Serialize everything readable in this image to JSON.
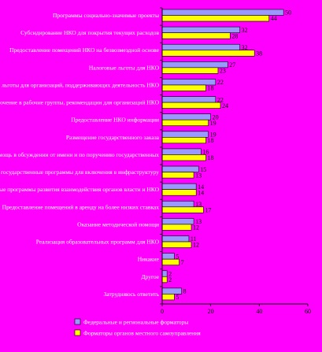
{
  "chart_data": {
    "type": "bar",
    "orientation": "horizontal",
    "categories": [
      "Программы социально-значимые проекты",
      "Субсидирование НКО для покрытия текущих расходов",
      "Предоставление помещений НКО на безвозмездной основе",
      "Налоговые льготы для НКО",
      "Налоговые льготы для организаций, поддерживающих деятельность НКО",
      "Включение в рабочие группы, рекомендации для организаций НКО",
      "Предоставление НКО информации",
      "Размещение государственного заказа",
      "Участие или помощь в обсуждении от имени и по поручению государственных",
      "Специальные государственные программы для включения в инфраструктуру",
      "Специальные программы развития взаимодействия органов власти и НКО",
      "Предоставление помещений в аренду на более низких ставках",
      "Оказание методической помощи",
      "Реализация образовательных программ для НКО",
      "Никакие",
      "Другое",
      "Затрудняюсь ответить"
    ],
    "series": [
      {
        "name": "Федеральные и региональные форматоры",
        "color": "#9999ff",
        "values": [
          50,
          32,
          32,
          27,
          22,
          22,
          20,
          19,
          16,
          15,
          14,
          13,
          13,
          11,
          5,
          2,
          8
        ]
      },
      {
        "name": "Форматоры органов местного самоуправления",
        "color": "#ffff00",
        "values": [
          44,
          28,
          38,
          23,
          18,
          24,
          19,
          18,
          18,
          13,
          14,
          17,
          12,
          12,
          7,
          2,
          5
        ]
      }
    ],
    "xlim": [
      0,
      60
    ],
    "xticks": [
      0,
      20,
      40,
      60
    ],
    "grid": false,
    "legend_position": "bottom"
  }
}
